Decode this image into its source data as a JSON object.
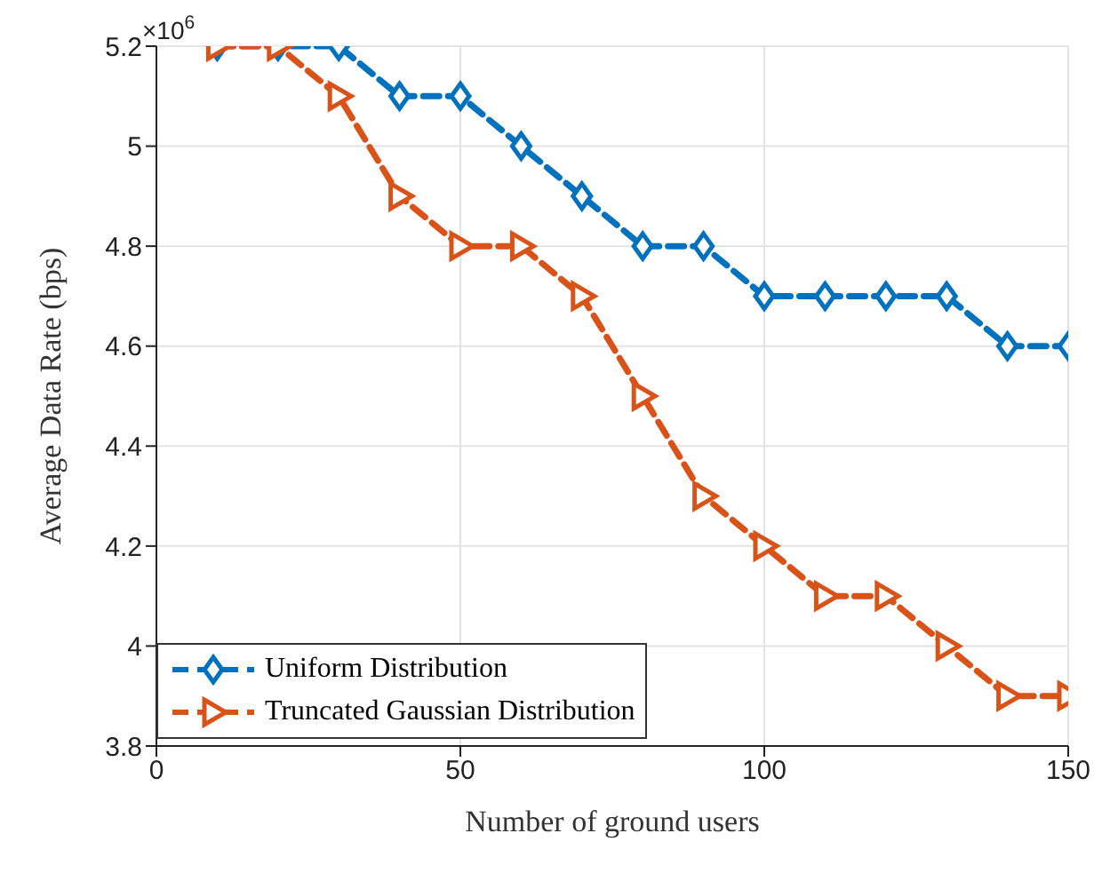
{
  "chart_data": {
    "type": "line",
    "xlabel": "Number of ground users",
    "ylabel": "Average Data Rate (bps)",
    "annotations": [
      "×10$^{6}$"
    ],
    "x": [
      10,
      20,
      30,
      40,
      50,
      60,
      70,
      80,
      90,
      100,
      110,
      120,
      130,
      140,
      150
    ],
    "series": [
      {
        "name": "Uniform Distribution",
        "color": "#0072bd",
        "marker": "diamond",
        "line_style": "dashed",
        "values": [
          5.2,
          5.2,
          5.2,
          5.1,
          5.1,
          5.0,
          4.9,
          4.8,
          4.8,
          4.7,
          4.7,
          4.7,
          4.7,
          4.6,
          4.6
        ]
      },
      {
        "name": "Truncated Gaussian Distribution",
        "color": "#d95319",
        "marker": "triangle",
        "line_style": "dashed",
        "values": [
          5.2,
          5.2,
          5.1,
          4.9,
          4.8,
          4.8,
          4.7,
          4.5,
          4.3,
          4.2,
          4.1,
          4.1,
          4.0,
          3.9,
          3.9
        ]
      }
    ],
    "xlim": [
      0,
      150
    ],
    "xticks": [
      0,
      50,
      100,
      150
    ],
    "ylim": [
      3.8,
      5.2
    ],
    "yticks": [
      3.8,
      4,
      4.2,
      4.4,
      4.6,
      4.8,
      5,
      5.2
    ],
    "grid": true,
    "legend": "bottom left"
  }
}
